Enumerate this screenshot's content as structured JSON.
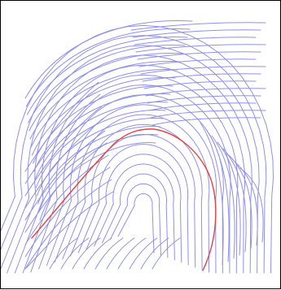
{
  "image": {
    "subject": "fingerprint-ridge-pattern",
    "colors": {
      "background": "#ffffff",
      "border": "#000000",
      "ridge": "#8f8ff0",
      "highlight": "#e8413c"
    }
  }
}
